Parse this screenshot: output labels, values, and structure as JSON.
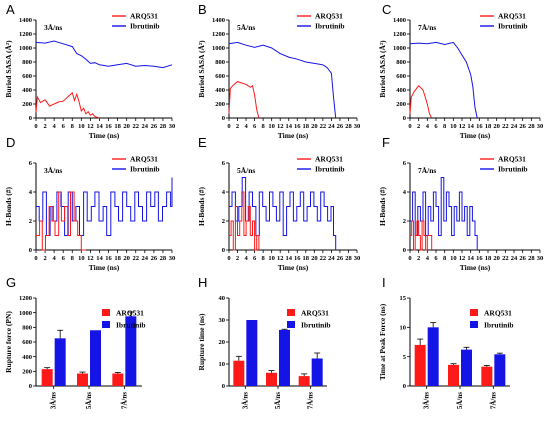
{
  "colors": {
    "arq": "#ff1a1a",
    "ibr": "#1414e6",
    "axis": "#000000"
  },
  "chart_data": [
    {
      "panel": "A",
      "type": "line",
      "note": "3Å/ns",
      "xlabel": "Time (ns)",
      "ylabel": "Buried SASA (Å²)",
      "xlim": [
        0,
        30
      ],
      "ylim": [
        0,
        1400
      ],
      "xticks": [
        "0",
        "2",
        "4",
        "6",
        "8",
        "10",
        "12",
        "14",
        "16",
        "18",
        "20",
        "22",
        "24",
        "26",
        "28",
        "30"
      ],
      "yticks": [
        "0",
        "200",
        "400",
        "600",
        "800",
        "1000",
        "1200",
        "1400"
      ],
      "series": [
        {
          "name": "ARQ531",
          "color": "arq",
          "x": [
            0,
            0.3,
            1,
            2,
            3,
            4,
            5,
            6,
            7,
            8,
            8.5,
            9,
            9.5,
            10,
            10.5,
            11,
            11.5,
            12,
            12.5,
            13,
            13.5,
            14
          ],
          "y": [
            80,
            300,
            220,
            260,
            170,
            200,
            230,
            240,
            300,
            360,
            250,
            340,
            230,
            100,
            140,
            60,
            90,
            40,
            60,
            20,
            10,
            0
          ]
        },
        {
          "name": "Ibrutinib",
          "color": "ibr",
          "x": [
            0,
            2,
            4,
            6,
            8,
            9,
            10,
            11,
            12,
            13,
            14,
            16,
            18,
            20,
            22,
            24,
            26,
            28,
            30
          ],
          "y": [
            1080,
            1070,
            1100,
            1060,
            1020,
            920,
            890,
            840,
            780,
            790,
            760,
            740,
            760,
            780,
            740,
            750,
            740,
            720,
            760
          ]
        }
      ]
    },
    {
      "panel": "B",
      "type": "line",
      "note": "5Å/ns",
      "xlabel": "Time (ns)",
      "ylabel": "Buried SASA (Å²)",
      "xlim": [
        0,
        30
      ],
      "ylim": [
        0,
        1400
      ],
      "xticks": [
        "0",
        "2",
        "4",
        "6",
        "8",
        "10",
        "12",
        "14",
        "16",
        "18",
        "20",
        "22",
        "24",
        "26",
        "28",
        "30"
      ],
      "yticks": [
        "0",
        "200",
        "400",
        "600",
        "800",
        "1000",
        "1200",
        "1400"
      ],
      "series": [
        {
          "name": "ARQ531",
          "color": "arq",
          "x": [
            0,
            0.3,
            1,
            2,
            3,
            4,
            5,
            5.5,
            6,
            6.5,
            7
          ],
          "y": [
            60,
            420,
            470,
            520,
            500,
            480,
            440,
            460,
            330,
            120,
            0
          ]
        },
        {
          "name": "Ibrutinib",
          "color": "ibr",
          "x": [
            0,
            2,
            4,
            6,
            8,
            10,
            12,
            14,
            16,
            18,
            20,
            22,
            23,
            24,
            24.5,
            25
          ],
          "y": [
            1060,
            1080,
            1040,
            1010,
            1040,
            1000,
            920,
            870,
            840,
            800,
            780,
            760,
            720,
            640,
            300,
            0
          ]
        }
      ]
    },
    {
      "panel": "C",
      "type": "line",
      "note": "7Å/ns",
      "xlabel": "Time (ns)",
      "ylabel": "Buried SASA (Å²)",
      "xlim": [
        0,
        30
      ],
      "ylim": [
        0,
        1400
      ],
      "xticks": [
        "0",
        "2",
        "4",
        "6",
        "8",
        "10",
        "12",
        "14",
        "16",
        "18",
        "20",
        "22",
        "24",
        "26",
        "28",
        "30"
      ],
      "yticks": [
        "0",
        "200",
        "400",
        "600",
        "800",
        "1000",
        "1200",
        "1400"
      ],
      "series": [
        {
          "name": "ARQ531",
          "color": "arq",
          "x": [
            0,
            0.3,
            1,
            2,
            3,
            3.5,
            4,
            4.5,
            5
          ],
          "y": [
            60,
            300,
            380,
            460,
            400,
            300,
            200,
            60,
            0
          ]
        },
        {
          "name": "Ibrutinib",
          "color": "ibr",
          "x": [
            0,
            2,
            4,
            6,
            8,
            10,
            11,
            12,
            13,
            14,
            14.5,
            15,
            15.5
          ],
          "y": [
            1060,
            1070,
            1060,
            1080,
            1050,
            1080,
            1000,
            900,
            800,
            620,
            450,
            150,
            0
          ]
        }
      ]
    },
    {
      "panel": "D",
      "type": "line",
      "note": "3Å/ns",
      "xlabel": "Time (ns)",
      "ylabel": "H-Bonds (#)",
      "xlim": [
        0,
        30
      ],
      "ylim": [
        0,
        6
      ],
      "xticks": [
        "0",
        "2",
        "4",
        "6",
        "8",
        "10",
        "12",
        "14",
        "16",
        "18",
        "20",
        "22",
        "24",
        "26",
        "28",
        "30"
      ],
      "yticks": [
        "0",
        "2",
        "4",
        "6"
      ],
      "series": [
        {
          "name": "ARQ531",
          "color": "arq",
          "x": [
            0,
            0.8,
            1.4,
            2.1,
            2.9,
            3.5,
            4.2,
            5,
            5.6,
            6.3,
            7,
            7.6,
            8.4,
            9.2,
            10,
            11
          ],
          "y": [
            1,
            2,
            0,
            1,
            3,
            2,
            1,
            4,
            2,
            3,
            1,
            4,
            2,
            1,
            0,
            0
          ]
        },
        {
          "name": "Ibrutinib",
          "color": "ibr",
          "x": [
            0,
            0.7,
            1.5,
            2.3,
            3.1,
            3.8,
            4.6,
            5.5,
            6.3,
            7.1,
            8,
            8.8,
            9.6,
            10.5,
            11.3,
            12.2,
            13,
            13.9,
            14.8,
            15.6,
            16.5,
            17.4,
            18.2,
            19.1,
            20,
            20.9,
            21.8,
            22.6,
            23.5,
            24.4,
            25.3,
            26.2,
            27,
            27.9,
            28.8,
            29.7,
            30
          ],
          "y": [
            3,
            2,
            4,
            1,
            3,
            2,
            4,
            3,
            1,
            4,
            2,
            3,
            1,
            4,
            2,
            3,
            4,
            2,
            3,
            1,
            4,
            3,
            2,
            4,
            3,
            2,
            4,
            3,
            2,
            4,
            3,
            4,
            2,
            3,
            4,
            3,
            5
          ]
        }
      ]
    },
    {
      "panel": "E",
      "type": "line",
      "note": "5Å/ns",
      "xlabel": "Time (ns)",
      "ylabel": "H-Bonds (#)",
      "xlim": [
        0,
        30
      ],
      "ylim": [
        0,
        6
      ],
      "xticks": [
        "0",
        "2",
        "4",
        "6",
        "8",
        "10",
        "12",
        "14",
        "16",
        "18",
        "20",
        "22",
        "24",
        "26",
        "28",
        "30"
      ],
      "yticks": [
        "0",
        "2",
        "4",
        "6"
      ],
      "series": [
        {
          "name": "ARQ531",
          "color": "arq",
          "x": [
            0,
            0.5,
            1,
            1.5,
            2,
            2.5,
            3,
            3.5,
            4,
            4.5,
            5,
            5.5,
            6,
            6.5,
            7
          ],
          "y": [
            1,
            2,
            0,
            3,
            1,
            2,
            4,
            1,
            2,
            3,
            1,
            2,
            0,
            1,
            0
          ]
        },
        {
          "name": "Ibrutinib",
          "color": "ibr",
          "x": [
            0,
            0.7,
            1.5,
            2.3,
            3.1,
            3.9,
            4.7,
            5.5,
            6.3,
            7.1,
            7.9,
            8.7,
            9.5,
            10.3,
            11.1,
            11.9,
            12.7,
            13.5,
            14.3,
            15.1,
            15.9,
            16.7,
            17.5,
            18.3,
            19.1,
            19.9,
            20.7,
            21.5,
            22.3,
            23.1,
            23.9,
            24.5,
            25
          ],
          "y": [
            3,
            4,
            2,
            3,
            5,
            2,
            4,
            3,
            1,
            4,
            3,
            2,
            4,
            3,
            2,
            4,
            1,
            3,
            4,
            2,
            3,
            4,
            2,
            3,
            4,
            3,
            2,
            4,
            3,
            2,
            3,
            1,
            0
          ]
        }
      ]
    },
    {
      "panel": "F",
      "type": "line",
      "note": "7Å/ns",
      "xlabel": "Time (ns)",
      "ylabel": "H-Bonds (#)",
      "xlim": [
        0,
        30
      ],
      "ylim": [
        0,
        6
      ],
      "xticks": [
        "0",
        "2",
        "4",
        "6",
        "8",
        "10",
        "12",
        "14",
        "16",
        "18",
        "20",
        "22",
        "24",
        "26",
        "28",
        "30"
      ],
      "yticks": [
        "0",
        "2",
        "4",
        "6"
      ],
      "series": [
        {
          "name": "ARQ531",
          "color": "arq",
          "x": [
            0,
            0.4,
            0.8,
            1.2,
            1.6,
            2,
            2.4,
            2.8,
            3.2,
            3.6,
            4,
            4.5,
            5
          ],
          "y": [
            1,
            2,
            0,
            1,
            2,
            1,
            0,
            2,
            1,
            0,
            1,
            1,
            0
          ]
        },
        {
          "name": "Ibrutinib",
          "color": "ibr",
          "x": [
            0,
            0.6,
            1.2,
            1.8,
            2.4,
            3,
            3.6,
            4.2,
            4.8,
            5.4,
            6,
            6.6,
            7.2,
            7.8,
            8.4,
            9,
            9.6,
            10.2,
            10.8,
            11.4,
            12,
            12.6,
            13.2,
            13.8,
            14.4,
            15,
            15.5
          ],
          "y": [
            2,
            4,
            1,
            3,
            2,
            4,
            1,
            3,
            2,
            4,
            3,
            1,
            5,
            2,
            4,
            3,
            1,
            3,
            2,
            4,
            2,
            3,
            1,
            3,
            2,
            1,
            0
          ]
        }
      ]
    },
    {
      "panel": "G",
      "type": "bar",
      "ylabel": "Rupture force (PN)",
      "ylim": [
        0,
        1200
      ],
      "yticks": [
        "0",
        "200",
        "400",
        "600",
        "800",
        "1000",
        "1200"
      ],
      "categories": [
        "3Å/ns",
        "5Å/ns",
        "7Å/ns"
      ],
      "series": [
        {
          "name": "ARQ531",
          "color": "arq",
          "values": [
            230,
            170,
            170
          ],
          "errors": [
            20,
            20,
            15
          ]
        },
        {
          "name": "Ibrutinib",
          "color": "ibr",
          "values": [
            650,
            760,
            950
          ],
          "errors": [
            110,
            0,
            60
          ]
        }
      ]
    },
    {
      "panel": "H",
      "type": "bar",
      "ylabel": "Rupture time (ns)",
      "ylim": [
        0,
        40
      ],
      "yticks": [
        "0",
        "10",
        "20",
        "30",
        "40"
      ],
      "categories": [
        "3Å/ns",
        "5Å/ns",
        "7Å/ns"
      ],
      "series": [
        {
          "name": "ARQ531",
          "color": "arq",
          "values": [
            11.5,
            6,
            4.5
          ],
          "errors": [
            2,
            1,
            1
          ]
        },
        {
          "name": "Ibrutinib",
          "color": "ibr",
          "values": [
            30,
            25.5,
            12.5
          ],
          "errors": [
            0,
            0.3,
            2.5
          ]
        }
      ]
    },
    {
      "panel": "I",
      "type": "bar",
      "ylabel": "Time at Peak Force (ns)",
      "ylim": [
        0,
        15
      ],
      "yticks": [
        "0",
        "5",
        "10",
        "15"
      ],
      "categories": [
        "3Å/ns",
        "5Å/ns",
        "7Å/ns"
      ],
      "series": [
        {
          "name": "ARQ531",
          "color": "arq",
          "values": [
            7,
            3.6,
            3.3
          ],
          "errors": [
            1,
            0.2,
            0.2
          ]
        },
        {
          "name": "Ibrutinib",
          "color": "ibr",
          "values": [
            10,
            6.2,
            5.4
          ],
          "errors": [
            0.8,
            0.4,
            0.2
          ]
        }
      ]
    }
  ]
}
